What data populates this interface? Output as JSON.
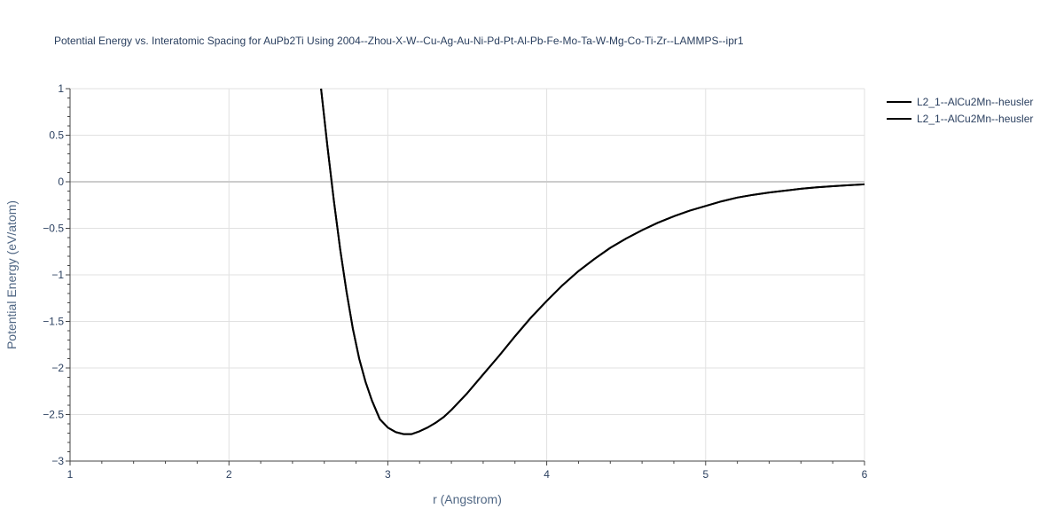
{
  "chart_data": {
    "type": "line",
    "title": "Potential Energy vs. Interatomic Spacing for AuPb2Ti Using 2004--Zhou-X-W--Cu-Ag-Au-Ni-Pd-Pt-Al-Pb-Fe-Mo-Ta-W-Mg-Co-Ti-Zr--LAMMPS--ipr1",
    "xlabel": "r (Angstrom)",
    "ylabel": "Potential Energy (eV/atom)",
    "xlim": [
      1,
      6
    ],
    "ylim": [
      -3,
      1
    ],
    "xticks": [
      1,
      2,
      3,
      4,
      5,
      6
    ],
    "xtick_labels": [
      "1",
      "2",
      "3",
      "4",
      "5",
      "6"
    ],
    "yticks": [
      1,
      0.5,
      0,
      -0.5,
      -1,
      -1.5,
      -2,
      -2.5,
      -3
    ],
    "ytick_labels": [
      "1",
      "0.5",
      "0",
      "−0.5",
      "−1",
      "−1.5",
      "−2",
      "−2.5",
      "−3"
    ],
    "grid": true,
    "legend_position": "top-right",
    "series": [
      {
        "name": "L2_1--AlCu2Mn--heusler",
        "color": "#000000",
        "x": [
          2.58,
          2.62,
          2.66,
          2.7,
          2.74,
          2.78,
          2.82,
          2.86,
          2.9,
          2.95,
          3.0,
          3.05,
          3.1,
          3.15,
          3.2,
          3.25,
          3.3,
          3.35,
          3.4,
          3.5,
          3.6,
          3.7,
          3.8,
          3.9,
          4.0,
          4.1,
          4.2,
          4.3,
          4.4,
          4.5,
          4.6,
          4.7,
          4.8,
          4.9,
          5.0,
          5.1,
          5.2,
          5.3,
          5.4,
          5.5,
          5.6,
          5.7,
          5.8,
          5.9,
          6.0
        ],
        "y": [
          1.0,
          0.38,
          -0.2,
          -0.72,
          -1.18,
          -1.58,
          -1.9,
          -2.15,
          -2.35,
          -2.55,
          -2.64,
          -2.69,
          -2.71,
          -2.71,
          -2.68,
          -2.64,
          -2.59,
          -2.53,
          -2.45,
          -2.27,
          -2.07,
          -1.87,
          -1.66,
          -1.46,
          -1.28,
          -1.11,
          -0.96,
          -0.83,
          -0.71,
          -0.61,
          -0.52,
          -0.44,
          -0.37,
          -0.31,
          -0.26,
          -0.21,
          -0.17,
          -0.14,
          -0.115,
          -0.095,
          -0.075,
          -0.06,
          -0.048,
          -0.037,
          -0.028
        ]
      },
      {
        "name": "L2_1--AlCu2Mn--heusler",
        "color": "#000000",
        "x": [
          2.58,
          2.62,
          2.66,
          2.7,
          2.74,
          2.78,
          2.82,
          2.86,
          2.9,
          2.95,
          3.0,
          3.05,
          3.1,
          3.15,
          3.2,
          3.25,
          3.3,
          3.35,
          3.4,
          3.5,
          3.6,
          3.7,
          3.8,
          3.9,
          4.0,
          4.1,
          4.2,
          4.3,
          4.4,
          4.5,
          4.6,
          4.7,
          4.8,
          4.9,
          5.0,
          5.1,
          5.2,
          5.3,
          5.4,
          5.5,
          5.6,
          5.7,
          5.8,
          5.9,
          6.0
        ],
        "y": [
          1.0,
          0.38,
          -0.2,
          -0.72,
          -1.18,
          -1.58,
          -1.9,
          -2.15,
          -2.35,
          -2.55,
          -2.64,
          -2.69,
          -2.71,
          -2.71,
          -2.68,
          -2.64,
          -2.59,
          -2.53,
          -2.45,
          -2.27,
          -2.07,
          -1.87,
          -1.66,
          -1.46,
          -1.28,
          -1.11,
          -0.96,
          -0.83,
          -0.71,
          -0.61,
          -0.52,
          -0.44,
          -0.37,
          -0.31,
          -0.26,
          -0.21,
          -0.17,
          -0.14,
          -0.115,
          -0.095,
          -0.075,
          -0.06,
          -0.048,
          -0.037,
          -0.028
        ]
      }
    ]
  }
}
